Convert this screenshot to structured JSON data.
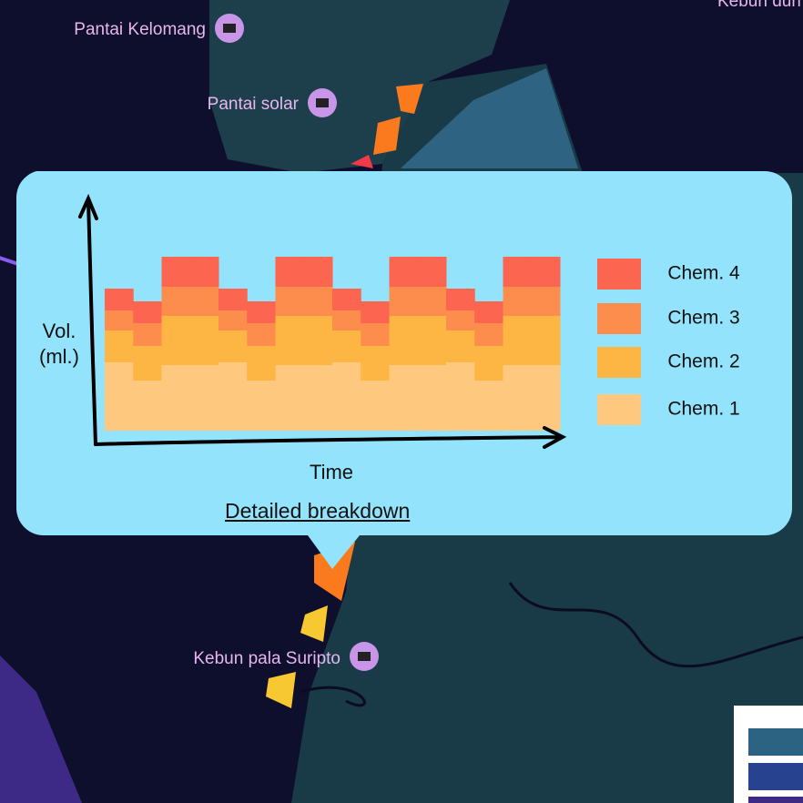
{
  "map_labels": [
    "Pantai Kelomang",
    "Pantai solar",
    "Kebun pala Suripto",
    "Kebun duri"
  ],
  "chart_data": {
    "type": "stacked_bar",
    "xlabel": "Time",
    "ylabel": "Vol. (ml.)",
    "categories": [
      null,
      null,
      null,
      null,
      null,
      null,
      null,
      null,
      null,
      null,
      null,
      null,
      null,
      null,
      null,
      null
    ],
    "ylim": [
      0,
      200
    ],
    "series": [
      {
        "name": "Chem. 1",
        "color": "#fec97f",
        "values": [
          75,
          55,
          72,
          72,
          75,
          55,
          72,
          72,
          75,
          55,
          72,
          72,
          75,
          55,
          72,
          72
        ]
      },
      {
        "name": "Chem. 2",
        "color": "#fdb544",
        "values": [
          35,
          38,
          54,
          54,
          35,
          38,
          54,
          54,
          35,
          38,
          54,
          54,
          35,
          38,
          54,
          54
        ]
      },
      {
        "name": "Chem. 3",
        "color": "#fd8d4c",
        "values": [
          22,
          25,
          32,
          32,
          22,
          25,
          32,
          32,
          22,
          25,
          32,
          32,
          22,
          25,
          32,
          32
        ]
      },
      {
        "name": "Chem. 4",
        "color": "#fc6550",
        "values": [
          24,
          24,
          33,
          33,
          24,
          24,
          33,
          33,
          24,
          24,
          33,
          33,
          24,
          24,
          33,
          33
        ]
      }
    ]
  },
  "link": "Detailed breakdown"
}
